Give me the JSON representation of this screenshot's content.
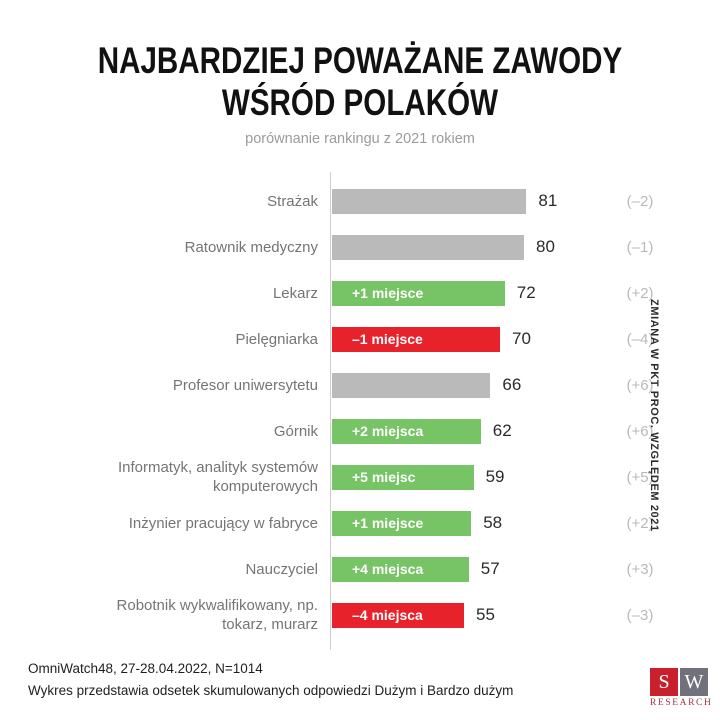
{
  "header": {
    "title_line1": "NAJBARDZIEJ POWAŻANE ZAWODY",
    "title_line2": "WŚRÓD POLAKÓW",
    "subtitle": "porównanie rankingu z 2021 rokiem"
  },
  "chart_data": {
    "type": "bar",
    "orientation": "horizontal",
    "title": "NAJBARDZIEJ POWAŻANE ZAWODY WŚRÓD POLAKÓW",
    "subtitle": "porównanie rankingu z 2021 rokiem",
    "value_unit": "percent of cumulative answers Dużym i Bardzo dużym",
    "xlim": [
      0,
      100
    ],
    "grid": false,
    "right_axis_label": "ZMIANA W PKT PROC. WZGLĘDEM 2021",
    "rows": [
      {
        "label": "Strażak",
        "value": 81,
        "change": "(–2)",
        "color": "gray",
        "badge": ""
      },
      {
        "label": "Ratownik medyczny",
        "value": 80,
        "change": "(–1)",
        "color": "gray",
        "badge": ""
      },
      {
        "label": "Lekarz",
        "value": 72,
        "change": "(+2)",
        "color": "green",
        "badge": "+1 miejsce"
      },
      {
        "label": "Pielęgniarka",
        "value": 70,
        "change": "(–4)",
        "color": "red",
        "badge": "–1 miejsce"
      },
      {
        "label": "Profesor uniwersytetu",
        "value": 66,
        "change": "(+6)",
        "color": "gray",
        "badge": ""
      },
      {
        "label": "Górnik",
        "value": 62,
        "change": "(+6)",
        "color": "green",
        "badge": "+2 miejsca"
      },
      {
        "label": "Informatyk, analityk systemów komputerowych",
        "value": 59,
        "change": "(+5)",
        "color": "green",
        "badge": "+5 miejsc"
      },
      {
        "label": "Inżynier pracujący w fabryce",
        "value": 58,
        "change": "(+2)",
        "color": "green",
        "badge": "+1 miejsce"
      },
      {
        "label": "Nauczyciel",
        "value": 57,
        "change": "(+3)",
        "color": "green",
        "badge": "+4 miejsca"
      },
      {
        "label": "Robotnik wykwalifikowany, np. tokarz, murarz",
        "value": 55,
        "change": "(–3)",
        "color": "red",
        "badge": "–4 miejsca"
      }
    ]
  },
  "footer": {
    "line1": "OmniWatch48, 27-28.04.2022, N=1014",
    "line2": "Wykres przedstawia odsetek skumulowanych odpowiedzi Dużym i Bardzo dużym"
  },
  "logo": {
    "letter1": "S",
    "letter2": "W",
    "caption": "RESEARCH"
  },
  "colors": {
    "bar_gray": "#bababa",
    "bar_green": "#76c465",
    "bar_red": "#e8222b",
    "axis_line": "#cfcfcf",
    "title_text": "#111111",
    "subtitle_text": "#9b9b9b",
    "label_text": "#757575",
    "value_text": "#2b2b2b",
    "change_text": "#b9b9b9",
    "logo_red": "#c9202e",
    "logo_gray": "#70717a",
    "logo_caption": "#a03744"
  }
}
